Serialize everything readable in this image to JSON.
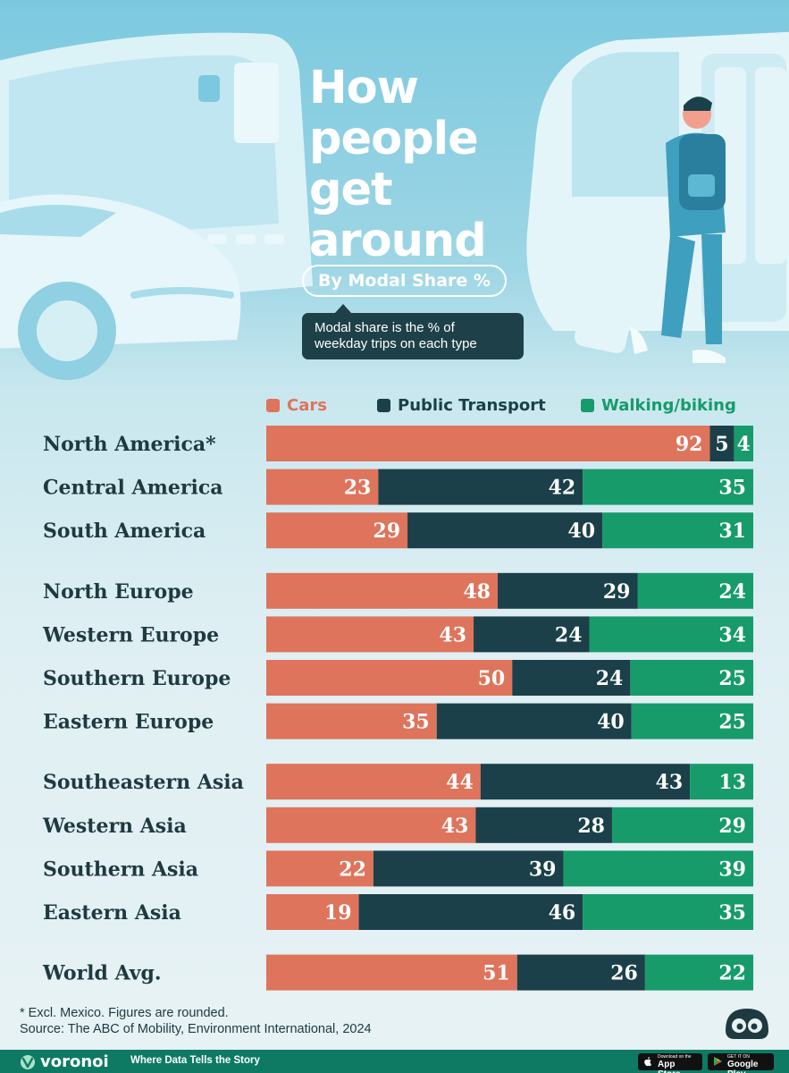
{
  "header": {
    "title_lines": [
      "How",
      "people",
      "get",
      "around"
    ],
    "subtitle": "By Modal Share %",
    "note_lines": [
      "Modal share is the % of",
      "weekday trips on each type"
    ]
  },
  "colors": {
    "cars": "#de745c",
    "public_transport": "#1b4049",
    "walking_biking": "#179b6a",
    "label_dark": "#1e3a40",
    "footer": "#0e7a64"
  },
  "chart_data": {
    "type": "bar",
    "orientation": "horizontal",
    "stacked": true,
    "normalized": true,
    "title": "How people get around",
    "subtitle": "By Modal Share %",
    "legend_position": "top",
    "categories": [
      "North America*",
      "Central America",
      "South America",
      "North Europe",
      "Western Europe",
      "Southern Europe",
      "Eastern Europe",
      "Southeastern Asia",
      "Western Asia",
      "Southern Asia",
      "Eastern Asia",
      "World Avg."
    ],
    "groups": [
      [
        "North America*",
        "Central America",
        "South America"
      ],
      [
        "North Europe",
        "Western Europe",
        "Southern Europe",
        "Eastern Europe"
      ],
      [
        "Southeastern Asia",
        "Western Asia",
        "Southern Asia",
        "Eastern Asia"
      ],
      [
        "World Avg."
      ]
    ],
    "series": [
      {
        "name": "Cars",
        "color": "#de745c",
        "values": [
          92,
          23,
          29,
          48,
          43,
          50,
          35,
          44,
          43,
          22,
          19,
          51
        ]
      },
      {
        "name": "Public Transport",
        "color": "#1b4049",
        "values": [
          5,
          42,
          40,
          29,
          24,
          24,
          40,
          43,
          28,
          39,
          46,
          26
        ]
      },
      {
        "name": "Walking/biking",
        "color": "#179b6a",
        "values": [
          4,
          35,
          31,
          24,
          34,
          25,
          25,
          13,
          29,
          39,
          35,
          22
        ]
      }
    ]
  },
  "footnote": {
    "line1": "* Excl. Mexico. Figures are rounded.",
    "line2": "Source: The ABC of Mobility, Environment International, 2024"
  },
  "footer": {
    "brand": "voronoi",
    "tagline": "Where Data Tells the Story",
    "app_store_top": "Download on the",
    "app_store_main": "App Store",
    "google_play_top": "GET IT ON",
    "google_play_main": "Google Play"
  }
}
